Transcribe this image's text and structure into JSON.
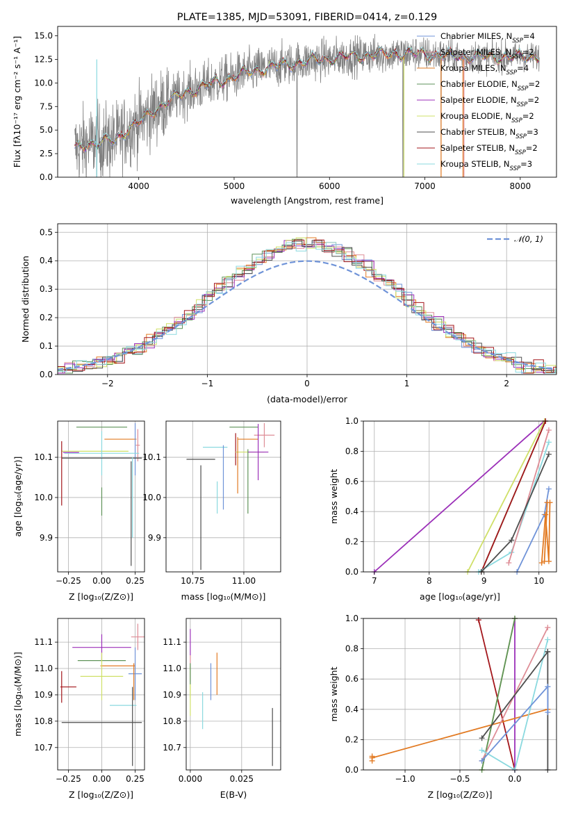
{
  "figure_title": "PLATE=1385, MJD=53091, FIBERID=0414, z=0.129",
  "series_colors": {
    "Chabrier MILES": "#6f93d8",
    "Salpeter MILES": "#de8d96",
    "Kroupa MILES": "#e27a22",
    "Chabrier ELODIE": "#5e9258",
    "Salpeter ELODIE": "#9b2fb8",
    "Kroupa ELODIE": "#cfe067",
    "Chabrier STELIB": "#4d4d4d",
    "Salpeter STELIB": "#a3161b",
    "Kroupa STELIB": "#8ad9df"
  },
  "chart_data": [
    {
      "id": "spectrum",
      "type": "line",
      "title": "PLATE=1385, MJD=53091, FIBERID=0414, z=0.129",
      "xlabel": "wavelength [Angstrom, rest frame]",
      "ylabel": "Flux [fλ10⁻¹⁷ erg cm⁻² s⁻¹ A⁻¹]",
      "xlim": [
        3150,
        8380
      ],
      "ylim": [
        0,
        16
      ],
      "xticks": [
        "4000",
        "5000",
        "6000",
        "7000",
        "8000"
      ],
      "yticks": [
        "0.0",
        "2.5",
        "5.0",
        "7.5",
        "10.0",
        "12.5",
        "15.0"
      ],
      "legend_position": "top-right",
      "legend": [
        {
          "label": "Chabrier MILES, N",
          "sub": "SSP",
          "suffix": "=4",
          "color": "#6f93d8"
        },
        {
          "label": "Salpeter MILES, N",
          "sub": "SSP",
          "suffix": "=2",
          "color": "#de8d96"
        },
        {
          "label": "Kroupa MILES, N",
          "sub": "SSP",
          "suffix": "=4",
          "color": "#e27a22"
        },
        {
          "label": "Chabrier ELODIE, N",
          "sub": "SSP",
          "suffix": "=2",
          "color": "#5e9258"
        },
        {
          "label": "Salpeter ELODIE, N",
          "sub": "SSP",
          "suffix": "=2",
          "color": "#9b2fb8"
        },
        {
          "label": "Kroupa ELODIE, N",
          "sub": "SSP",
          "suffix": "=2",
          "color": "#cfe067"
        },
        {
          "label": "Chabrier STELIB, N",
          "sub": "SSP",
          "suffix": "=3",
          "color": "#4d4d4d"
        },
        {
          "label": "Salpeter STELIB, N",
          "sub": "SSP",
          "suffix": "=2",
          "color": "#a3161b"
        },
        {
          "label": "Kroupa STELIB, N",
          "sub": "SSP",
          "suffix": "=3",
          "color": "#8ad9df"
        }
      ],
      "model_continuum": {
        "x": [
          3330,
          3450,
          3600,
          3750,
          3900,
          4000,
          4100,
          4200,
          4300,
          4500,
          4700,
          4900,
          5100,
          5300,
          5500,
          5700,
          5900,
          6100,
          6300,
          6500,
          6700,
          6900,
          7100,
          7200,
          7400
        ],
        "y": [
          3.0,
          3.5,
          3.7,
          3.9,
          5.2,
          5.8,
          6.6,
          7.4,
          8.0,
          9.0,
          9.7,
          10.4,
          11.0,
          11.5,
          11.9,
          12.2,
          12.5,
          12.7,
          12.9,
          13.0,
          13.1,
          13.1,
          13.0,
          12.9,
          12.8
        ]
      },
      "data_spectrum": {
        "x_range": [
          3330,
          8200
        ],
        "noise_blue": 3.0,
        "noise_red": 1.5,
        "dropouts": [
          {
            "x": 3560,
            "y": 0.0
          },
          {
            "x": 5660,
            "y": 0.0
          },
          {
            "x": 6770,
            "y": 0.0
          },
          {
            "x": 7170,
            "y": 0.0
          }
        ]
      },
      "model_dropouts": [
        {
          "x": 3560,
          "color": "#8ad9df"
        },
        {
          "x": 6780,
          "color": "#cfe067"
        },
        {
          "x": 7170,
          "color": "#e27a22"
        },
        {
          "x": 7400,
          "color": "#e27a22"
        },
        {
          "x": 7410,
          "color": "#de8d96"
        }
      ]
    },
    {
      "id": "residuals",
      "type": "line",
      "xlabel": "(data-model)/error",
      "ylabel": "Normed distribution",
      "xlim": [
        -2.5,
        2.5
      ],
      "ylim": [
        0,
        0.53
      ],
      "xticks": [
        "−2",
        "−1",
        "0",
        "1",
        "2"
      ],
      "yticks": [
        "0.0",
        "0.1",
        "0.2",
        "0.3",
        "0.4",
        "0.5"
      ],
      "grid": true,
      "legend_position": "top-right",
      "legend": [
        {
          "label": "𝒩(0, 1)",
          "color": "#6f93d8",
          "style": "dashed"
        }
      ],
      "reference_curve": "standard normal density",
      "bin_width": 0.1,
      "histograms": [
        {
          "color": "#6f93d8",
          "offset": 0.0
        },
        {
          "color": "#de8d96",
          "offset": 0.02
        },
        {
          "color": "#e27a22",
          "offset": -0.02
        },
        {
          "color": "#5e9258",
          "offset": 0.01
        },
        {
          "color": "#9b2fb8",
          "offset": 0.03
        },
        {
          "color": "#cfe067",
          "offset": -0.01
        },
        {
          "color": "#4d4d4d",
          "offset": 0.015
        },
        {
          "color": "#a3161b",
          "offset": -0.015
        },
        {
          "color": "#8ad9df",
          "offset": 0.005
        }
      ]
    },
    {
      "id": "age-vs-Z",
      "type": "scatter",
      "xlabel": "Z [log₁₀(Z/Z⊙)]",
      "ylabel": "age  [log₁₀(age/yr)]",
      "xlim": [
        -0.33,
        0.32
      ],
      "ylim": [
        9.815,
        10.19
      ],
      "xticks": [
        -0.25,
        0.0,
        0.25
      ],
      "xtick_labels": [
        "−0.25",
        "0.00",
        "0.25"
      ],
      "yticks": [
        9.9,
        10.0,
        10.1
      ],
      "ytick_labels": [
        "9.9",
        "10.0",
        "10.1"
      ],
      "grid": true,
      "points": [
        {
          "x": 0.0,
          "y": 10.175,
          "xerr": 0.19,
          "yerr": 0.0,
          "color": "#5e9258"
        },
        {
          "x": 0.14,
          "y": 10.145,
          "xerr": 0.12,
          "yerr": 0.0,
          "color": "#e27a22"
        },
        {
          "x": 0.25,
          "y": 10.12,
          "xerr": 0.0,
          "yerr": 0.065,
          "color": "#6f93d8"
        },
        {
          "x": 0.27,
          "y": 10.13,
          "xerr": 0.015,
          "yerr": 0.04,
          "color": "#de8d96"
        },
        {
          "x": -0.05,
          "y": 10.115,
          "xerr": 0.25,
          "yerr": 0.0,
          "color": "#cfe067"
        },
        {
          "x": 0.0,
          "y": 10.11,
          "xerr": 0.28,
          "yerr": 0.055,
          "color": "#8ad9df"
        },
        {
          "x": -0.23,
          "y": 10.112,
          "xerr": 0.06,
          "yerr": 0.0,
          "color": "#9b2fb8"
        },
        {
          "x": 0.0,
          "y": 10.098,
          "xerr": 0.3,
          "yerr": 0.0,
          "color": "#4d4d4d"
        },
        {
          "x": -0.3,
          "y": 10.06,
          "xerr": 0.0,
          "yerr": 0.08,
          "color": "#a3161b"
        },
        {
          "x": 0.0,
          "y": 9.99,
          "xerr": 0.0,
          "yerr": 0.035,
          "color": "#5e9258"
        },
        {
          "x": 0.23,
          "y": 10.0,
          "xerr": 0.0,
          "yerr": 0.1,
          "color": "#8ad9df"
        },
        {
          "x": 0.22,
          "y": 9.96,
          "xerr": 0.0,
          "yerr": 0.13,
          "color": "#4d4d4d"
        }
      ]
    },
    {
      "id": "age-vs-mass",
      "type": "scatter",
      "xlabel": "mass [log₁₀(M/M⊙)]",
      "xlim": [
        10.62,
        11.18
      ],
      "ylim": [
        9.815,
        10.19
      ],
      "xticks": [
        10.75,
        11.0
      ],
      "xtick_labels": [
        "10.75",
        "11.00"
      ],
      "yticks": [
        9.9,
        10.0,
        10.1
      ],
      "ytick_labels": [
        "9.9",
        "10.0",
        "10.1"
      ],
      "grid": true,
      "points": [
        {
          "x": 11.0,
          "y": 10.175,
          "xerr": 0.07,
          "yerr": 0.0,
          "color": "#5e9258"
        },
        {
          "x": 11.02,
          "y": 10.145,
          "xerr": 0.05,
          "yerr": 0.0,
          "color": "#e27a22"
        },
        {
          "x": 11.1,
          "y": 10.155,
          "xerr": 0.05,
          "yerr": 0.03,
          "color": "#de8d96"
        },
        {
          "x": 10.86,
          "y": 10.125,
          "xerr": 0.06,
          "yerr": 0.0,
          "color": "#8ad9df"
        },
        {
          "x": 10.96,
          "y": 10.12,
          "xerr": 0.0,
          "yerr": 0.04,
          "color": "#a3161b"
        },
        {
          "x": 11.03,
          "y": 10.113,
          "xerr": 0.07,
          "yerr": 0.0,
          "color": "#cfe067"
        },
        {
          "x": 11.07,
          "y": 10.113,
          "xerr": 0.05,
          "yerr": 0.07,
          "color": "#9b2fb8"
        },
        {
          "x": 10.79,
          "y": 10.095,
          "xerr": 0.07,
          "yerr": 0.0,
          "color": "#4d4d4d"
        },
        {
          "x": 10.97,
          "y": 10.08,
          "xerr": 0.0,
          "yerr": 0.07,
          "color": "#e27a22"
        },
        {
          "x": 10.9,
          "y": 10.05,
          "xerr": 0.0,
          "yerr": 0.08,
          "color": "#6f93d8"
        },
        {
          "x": 11.02,
          "y": 10.04,
          "xerr": 0.0,
          "yerr": 0.08,
          "color": "#5e9258"
        },
        {
          "x": 10.87,
          "y": 10.0,
          "xerr": 0.0,
          "yerr": 0.04,
          "color": "#8ad9df"
        },
        {
          "x": 10.79,
          "y": 9.95,
          "xerr": 0.0,
          "yerr": 0.13,
          "color": "#4d4d4d"
        }
      ]
    },
    {
      "id": "massweight-vs-age",
      "type": "line",
      "xlabel": "age  [log₁₀(age/yr)]",
      "ylabel": "mass weight",
      "xlim": [
        6.8,
        10.32
      ],
      "ylim": [
        0,
        1
      ],
      "xticks": [
        7,
        8,
        9,
        10
      ],
      "xtick_labels": [
        "7",
        "8",
        "9",
        "10"
      ],
      "yticks": [
        0.0,
        0.2,
        0.4,
        0.6,
        0.8,
        1.0
      ],
      "ytick_labels": [
        "0.0",
        "0.2",
        "0.4",
        "0.6",
        "0.8",
        "1.0"
      ],
      "grid": true,
      "series": [
        {
          "color": "#9b2fb8",
          "x": [
            7.0,
            10.1
          ],
          "y": [
            0.0,
            1.0
          ]
        },
        {
          "color": "#cfe067",
          "x": [
            8.7,
            10.1
          ],
          "y": [
            0.0,
            1.0
          ]
        },
        {
          "color": "#5e9258",
          "x": [
            8.95,
            10.12
          ],
          "y": [
            0.0,
            1.0
          ]
        },
        {
          "color": "#a3161b",
          "x": [
            8.95,
            10.12
          ],
          "y": [
            0.0,
            1.0
          ]
        },
        {
          "color": "#8ad9df",
          "x": [
            8.9,
            9.5,
            10.18
          ],
          "y": [
            0.0,
            0.13,
            0.86
          ]
        },
        {
          "color": "#de8d96",
          "x": [
            9.45,
            10.18
          ],
          "y": [
            0.06,
            0.94
          ]
        },
        {
          "color": "#4d4d4d",
          "x": [
            8.95,
            9.5,
            10.18
          ],
          "y": [
            0.0,
            0.21,
            0.78
          ]
        },
        {
          "color": "#6f93d8",
          "x": [
            9.6,
            10.1,
            10.18
          ],
          "y": [
            0.0,
            0.38,
            0.55
          ]
        },
        {
          "color": "#e27a22",
          "x": [
            10.05,
            10.12,
            10.18,
            10.2
          ],
          "y": [
            0.06,
            0.38,
            0.07,
            0.46
          ]
        },
        {
          "color": "#e27a22",
          "x": [
            10.1,
            10.15
          ],
          "y": [
            0.07,
            0.46
          ]
        }
      ]
    },
    {
      "id": "mass-vs-Z",
      "type": "scatter",
      "xlabel": "Z [log₁₀(Z/Z⊙)]",
      "ylabel": "mass [log₁₀(M/M⊙)]",
      "xlim": [
        -0.33,
        0.32
      ],
      "ylim": [
        10.615,
        11.19
      ],
      "xticks": [
        -0.25,
        0.0,
        0.25
      ],
      "xtick_labels": [
        "−0.25",
        "0.00",
        "0.25"
      ],
      "yticks": [
        10.7,
        10.8,
        10.9,
        11.0,
        11.1
      ],
      "ytick_labels": [
        "10.7",
        "10.8",
        "10.9",
        "11.0",
        "11.1"
      ],
      "grid": true,
      "points": [
        {
          "x": 0.0,
          "y": 11.08,
          "xerr": 0.22,
          "yerr": 0.05,
          "color": "#9b2fb8"
        },
        {
          "x": 0.27,
          "y": 11.12,
          "xerr": 0.05,
          "yerr": 0.05,
          "color": "#de8d96"
        },
        {
          "x": 0.0,
          "y": 11.03,
          "xerr": 0.18,
          "yerr": 0.0,
          "color": "#5e9258"
        },
        {
          "x": 0.12,
          "y": 11.01,
          "xerr": 0.13,
          "yerr": 0.0,
          "color": "#e27a22"
        },
        {
          "x": 0.25,
          "y": 10.98,
          "xerr": 0.05,
          "yerr": 0.1,
          "color": "#6f93d8"
        },
        {
          "x": 0.0,
          "y": 10.97,
          "xerr": 0.16,
          "yerr": 0.09,
          "color": "#cfe067"
        },
        {
          "x": -0.3,
          "y": 10.93,
          "xerr": 0.0,
          "yerr": 0.06,
          "color": "#a3161b"
        },
        {
          "x": -0.25,
          "y": 10.93,
          "xerr": 0.06,
          "yerr": 0.0,
          "color": "#a3161b"
        },
        {
          "x": 0.24,
          "y": 10.95,
          "xerr": 0.0,
          "yerr": 0.07,
          "color": "#e27a22"
        },
        {
          "x": 0.16,
          "y": 10.86,
          "xerr": 0.1,
          "yerr": 0.0,
          "color": "#8ad9df"
        },
        {
          "x": 0.0,
          "y": 10.795,
          "xerr": 0.3,
          "yerr": 0.0,
          "color": "#4d4d4d"
        },
        {
          "x": 0.23,
          "y": 10.78,
          "xerr": 0.0,
          "yerr": 0.15,
          "color": "#4d4d4d"
        }
      ]
    },
    {
      "id": "mass-vs-EBV",
      "type": "scatter",
      "xlabel": "E(B-V)",
      "xlim": [
        -0.002,
        0.044
      ],
      "ylim": [
        10.615,
        11.19
      ],
      "xticks": [
        0.0,
        0.025
      ],
      "xtick_labels": [
        "0.000",
        "0.025"
      ],
      "yticks": [
        10.7,
        10.8,
        10.9,
        11.0,
        11.1
      ],
      "ytick_labels": [
        "10.7",
        "10.8",
        "10.9",
        "11.0",
        "11.1"
      ],
      "grid": true,
      "points": [
        {
          "x": 0.0,
          "y": 11.1,
          "xerr": 0.0,
          "yerr": 0.05,
          "color": "#9b2fb8"
        },
        {
          "x": 0.0,
          "y": 11.0,
          "xerr": 0.0,
          "yerr": 0.05,
          "color": "#de8d96"
        },
        {
          "x": 0.0,
          "y": 10.95,
          "xerr": 0.0,
          "yerr": 0.06,
          "color": "#cfe067"
        },
        {
          "x": 0.0,
          "y": 10.88,
          "xerr": 0.0,
          "yerr": 0.06,
          "color": "#cfe067"
        },
        {
          "x": 0.0,
          "y": 10.98,
          "xerr": 0.0,
          "yerr": 0.04,
          "color": "#5e9258"
        },
        {
          "x": 0.01,
          "y": 10.95,
          "xerr": 0.0,
          "yerr": 0.07,
          "color": "#6f93d8"
        },
        {
          "x": 0.013,
          "y": 10.98,
          "xerr": 0.0,
          "yerr": 0.08,
          "color": "#e27a22"
        },
        {
          "x": 0.006,
          "y": 10.84,
          "xerr": 0.0,
          "yerr": 0.07,
          "color": "#8ad9df"
        },
        {
          "x": 0.04,
          "y": 10.74,
          "xerr": 0.0,
          "yerr": 0.11,
          "color": "#4d4d4d"
        }
      ]
    },
    {
      "id": "massweight-vs-Z",
      "type": "line",
      "xlabel": "Z [log₁₀(Z/Z⊙)]",
      "ylabel": "mass weight",
      "xlim": [
        -1.38,
        0.38
      ],
      "ylim": [
        0,
        1
      ],
      "xticks": [
        -1.0,
        -0.5,
        0.0
      ],
      "xtick_labels": [
        "−1.0",
        "−0.5",
        "0.0"
      ],
      "yticks": [
        0.0,
        0.2,
        0.4,
        0.6,
        0.8,
        1.0
      ],
      "ytick_labels": [
        "0.0",
        "0.2",
        "0.4",
        "0.6",
        "0.8",
        "1.0"
      ],
      "grid": true,
      "series": [
        {
          "color": "#a3161b",
          "x": [
            -0.33,
            0.0
          ],
          "y": [
            0.99,
            0.0
          ]
        },
        {
          "color": "#9b2fb8",
          "x": [
            0.0,
            0.0
          ],
          "y": [
            0.0,
            1.0
          ]
        },
        {
          "color": "#cfe067",
          "x": [
            -0.3,
            0.0
          ],
          "y": [
            0.0,
            1.0
          ]
        },
        {
          "color": "#5e9258",
          "x": [
            -0.3,
            0.0
          ],
          "y": [
            0.0,
            1.0
          ]
        },
        {
          "color": "#e27a22",
          "x": [
            -1.3,
            0.3
          ],
          "y": [
            0.08,
            0.4
          ]
        },
        {
          "color": "#e27a22",
          "x": [
            -1.3,
            -1.3
          ],
          "y": [
            0.06,
            0.09
          ]
        },
        {
          "color": "#de8d96",
          "x": [
            -0.3,
            0.3
          ],
          "y": [
            0.06,
            0.94
          ]
        },
        {
          "color": "#8ad9df",
          "x": [
            -0.3,
            0.0,
            0.3
          ],
          "y": [
            0.13,
            0.0,
            0.86
          ]
        },
        {
          "color": "#4d4d4d",
          "x": [
            -0.3,
            0.3
          ],
          "y": [
            0.21,
            0.78
          ]
        },
        {
          "color": "#4d4d4d",
          "x": [
            0.3,
            0.3
          ],
          "y": [
            0.0,
            0.78
          ]
        },
        {
          "color": "#6f93d8",
          "x": [
            -0.3,
            0.3
          ],
          "y": [
            0.06,
            0.55
          ]
        },
        {
          "color": "#6f93d8",
          "x": [
            0.3,
            0.3
          ],
          "y": [
            0.38,
            0.55
          ]
        }
      ]
    }
  ]
}
